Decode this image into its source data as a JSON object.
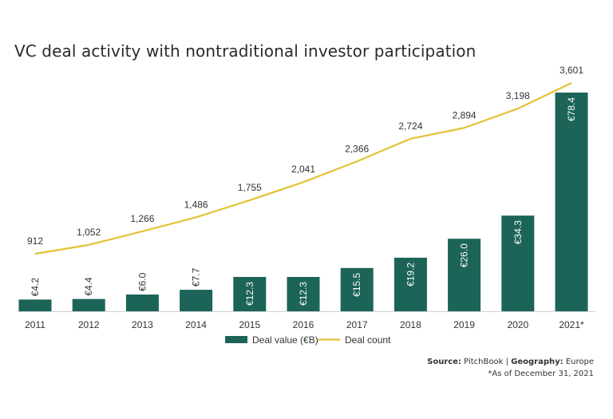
{
  "chart_data": {
    "type": "bar",
    "title": "VC deal activity with nontraditional investor participation",
    "categories": [
      "2011",
      "2012",
      "2013",
      "2014",
      "2015",
      "2016",
      "2017",
      "2018",
      "2019",
      "2020",
      "2021*"
    ],
    "series": [
      {
        "name": "Deal value (€B)",
        "kind": "bar",
        "color": "#1c6458",
        "values": [
          4.2,
          4.4,
          6.0,
          7.7,
          12.3,
          12.3,
          15.5,
          19.2,
          26.0,
          34.3,
          78.4
        ],
        "labels": [
          "€4.2",
          "€4.4",
          "€6.0",
          "€7.7",
          "€12.3",
          "€12.3",
          "€15.5",
          "€19.2",
          "€26.0",
          "€34.3",
          "€78.4"
        ]
      },
      {
        "name": "Deal count",
        "kind": "line",
        "color": "#e3c236",
        "values": [
          912,
          1052,
          1266,
          1486,
          1755,
          2041,
          2366,
          2724,
          2894,
          3198,
          3601
        ],
        "labels": [
          "912",
          "1,052",
          "1,266",
          "1,486",
          "1,755",
          "2,041",
          "2,366",
          "2,724",
          "2,894",
          "3,198",
          "3,601"
        ]
      }
    ],
    "legend_position": "bottom",
    "grid": false
  },
  "source": {
    "source_label": "Source:",
    "source_value": "PitchBook",
    "separator": "|",
    "geo_label": "Geography:",
    "geo_value": "Europe",
    "note": "*As of December 31, 2021"
  }
}
